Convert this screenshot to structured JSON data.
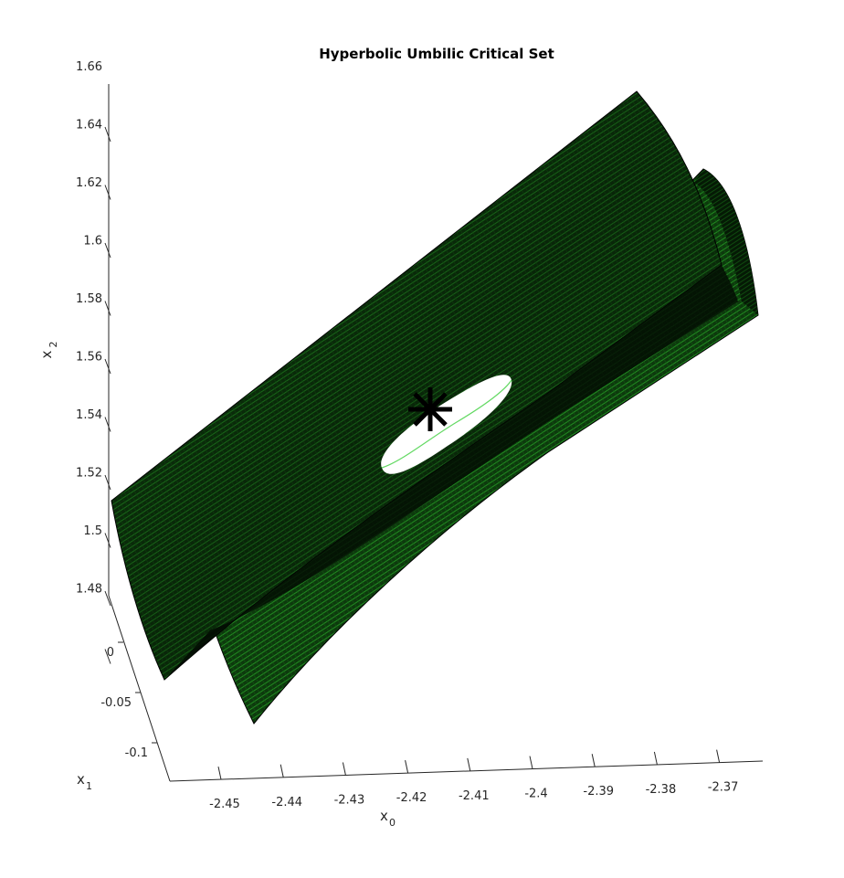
{
  "chart_data": {
    "type": "surface",
    "title": "Hyperbolic Umbilic Critical Set",
    "axes": {
      "x0": {
        "label_base": "x",
        "label_sub": "0",
        "ticks": [
          "-2.45",
          "-2.44",
          "-2.43",
          "-2.42",
          "-2.41",
          "-2.4",
          "-2.39",
          "-2.38",
          "-2.37"
        ]
      },
      "x1": {
        "label_base": "x",
        "label_sub": "1",
        "ticks": [
          "0",
          "-0.05",
          "-0.1"
        ]
      },
      "x2": {
        "label_base": "x",
        "label_sub": "2",
        "ticks": [
          "1.66",
          "1.64",
          "1.62",
          "1.6",
          "1.58",
          "1.56",
          "1.54",
          "1.52",
          "1.5",
          "1.48"
        ]
      }
    },
    "colors": {
      "surface": "#0c3a0c",
      "mesh": "#1fbf1f",
      "edge": "#000000",
      "axis": "#262626"
    },
    "marker": {
      "symbol": "asterisk",
      "color": "#000000"
    },
    "grid": false
  }
}
